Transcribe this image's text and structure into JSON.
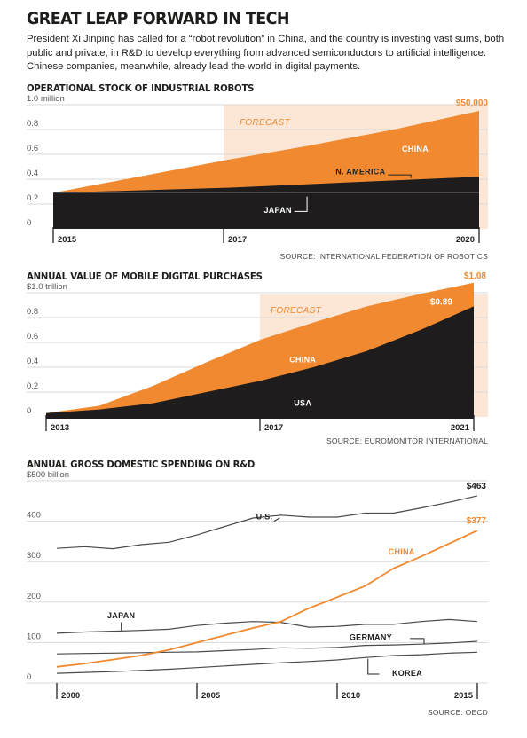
{
  "header": {
    "title": "GREAT LEAP FORWARD IN TECH",
    "intro": "President Xi Jinping has called for a “robot revolution” in China, and the country is investing vast sums, both public and private, in R&D to develop everything from advanced semiconductors to artificial intelligence. Chinese companies, meanwhile, already lead the world in digital payments."
  },
  "colors": {
    "orange": "#f0892f",
    "black": "#1e1c1c",
    "forecast_bg": "#fce6d5",
    "grid": "#d9d9d9",
    "gray_line": "#4a4a4a"
  },
  "chart_data": [
    {
      "type": "area",
      "title": "OPERATIONAL STOCK OF INDUSTRIAL ROBOTS",
      "stacked": true,
      "x": [
        2015,
        2016,
        2017,
        2018,
        2019,
        2020
      ],
      "ylim": [
        0,
        1.0
      ],
      "y_ticks": [
        {
          "value": 1.0,
          "label": "1.0 million"
        },
        {
          "value": 0.8,
          "label": "0.8"
        },
        {
          "value": 0.6,
          "label": "0.6"
        },
        {
          "value": 0.4,
          "label": "0.4"
        },
        {
          "value": 0.2,
          "label": "0.2"
        },
        {
          "value": 0,
          "label": "0"
        }
      ],
      "x_ticks": [
        {
          "value": 2015,
          "label": "2015"
        },
        {
          "value": 2017,
          "label": "2017"
        },
        {
          "value": 2020,
          "label": "2020"
        }
      ],
      "forecast_from": 2017,
      "forecast_label": "FORECAST",
      "series": [
        {
          "name": "JAPAN",
          "values": [
            0.29,
            0.29,
            0.29,
            0.29,
            0.29,
            0.29
          ]
        },
        {
          "name": "N. AMERICA",
          "values": [
            0.29,
            0.31,
            0.33,
            0.36,
            0.39,
            0.42
          ]
        },
        {
          "name": "CHINA",
          "values": [
            0.29,
            0.42,
            0.55,
            0.67,
            0.8,
            0.95
          ]
        }
      ],
      "annotations": [
        {
          "text": "950,000",
          "x": 2020,
          "y": 0.95
        }
      ],
      "source": "SOURCE: INTERNATIONAL FEDERATION OF ROBOTICS"
    },
    {
      "type": "area",
      "title": "ANNUAL VALUE OF MOBILE DIGITAL PURCHASES",
      "stacked": false,
      "x": [
        2013,
        2014,
        2015,
        2016,
        2017,
        2018,
        2019,
        2020,
        2021
      ],
      "ylim": [
        0,
        1.0
      ],
      "y_ticks": [
        {
          "value": 1.0,
          "label": "$1.0 trillion"
        },
        {
          "value": 0.8,
          "label": "0.8"
        },
        {
          "value": 0.6,
          "label": "0.6"
        },
        {
          "value": 0.4,
          "label": "0.4"
        },
        {
          "value": 0.2,
          "label": "0.2"
        },
        {
          "value": 0,
          "label": "0"
        }
      ],
      "x_ticks": [
        {
          "value": 2013,
          "label": "2013"
        },
        {
          "value": 2017,
          "label": "2017"
        },
        {
          "value": 2021,
          "label": "2021"
        }
      ],
      "forecast_from": 2017,
      "forecast_label": "FORECAST",
      "series": [
        {
          "name": "CHINA",
          "values": [
            0.03,
            0.09,
            0.25,
            0.44,
            0.62,
            0.76,
            0.89,
            0.99,
            1.08
          ]
        },
        {
          "name": "USA",
          "values": [
            0.03,
            0.06,
            0.11,
            0.2,
            0.29,
            0.4,
            0.53,
            0.7,
            0.89
          ]
        }
      ],
      "annotations": [
        {
          "text": "$1.08",
          "x": 2021,
          "y": 1.08
        },
        {
          "text": "$0.89",
          "x": 2021,
          "y": 0.89
        }
      ],
      "source": "SOURCE: EUROMONITOR INTERNATIONAL"
    },
    {
      "type": "line",
      "title": "ANNUAL GROSS DOMESTIC SPENDING ON R&D",
      "x": [
        2000,
        2001,
        2002,
        2003,
        2004,
        2005,
        2006,
        2007,
        2008,
        2009,
        2010,
        2011,
        2012,
        2013,
        2014,
        2015
      ],
      "ylim": [
        0,
        500
      ],
      "y_ticks": [
        {
          "value": 500,
          "label": "$500 billion"
        },
        {
          "value": 400,
          "label": "400"
        },
        {
          "value": 300,
          "label": "300"
        },
        {
          "value": 200,
          "label": "200"
        },
        {
          "value": 100,
          "label": "100"
        },
        {
          "value": 0,
          "label": "0"
        }
      ],
      "x_ticks": [
        {
          "value": 2000,
          "label": "2000"
        },
        {
          "value": 2005,
          "label": "2005"
        },
        {
          "value": 2010,
          "label": "2010"
        },
        {
          "value": 2015,
          "label": "2015"
        }
      ],
      "series": [
        {
          "name": "U.S.",
          "values": [
            333,
            337,
            332,
            342,
            348,
            366,
            387,
            408,
            415,
            410,
            410,
            420,
            420,
            433,
            447,
            463
          ]
        },
        {
          "name": "JAPAN",
          "values": [
            123,
            126,
            128,
            130,
            133,
            142,
            148,
            152,
            150,
            138,
            140,
            145,
            145,
            152,
            157,
            152
          ]
        },
        {
          "name": "GERMANY",
          "values": [
            72,
            73,
            74,
            75,
            76,
            77,
            80,
            83,
            87,
            86,
            88,
            93,
            94,
            96,
            99,
            103
          ]
        },
        {
          "name": "CHINA",
          "values": [
            40,
            48,
            58,
            68,
            82,
            100,
            118,
            136,
            152,
            185,
            212,
            240,
            283,
            313,
            345,
            377
          ]
        },
        {
          "name": "KOREA",
          "values": [
            24,
            26,
            28,
            31,
            34,
            38,
            42,
            46,
            50,
            53,
            57,
            63,
            68,
            70,
            74,
            76
          ]
        }
      ],
      "annotations": [
        {
          "text": "$463",
          "x": 2015,
          "y": 463
        },
        {
          "text": "$377",
          "x": 2015,
          "y": 377
        }
      ],
      "source": "SOURCE: OECD"
    }
  ]
}
